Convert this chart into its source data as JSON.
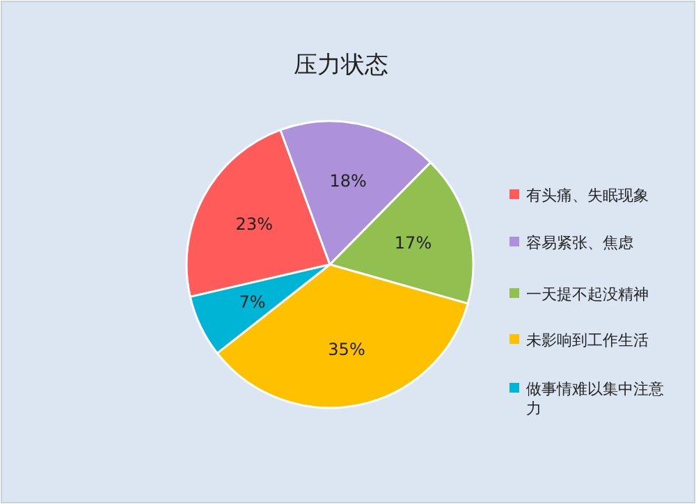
{
  "chart_data": {
    "type": "pie",
    "title": "压力状态",
    "categories": [
      "有头痛、失眠现象",
      "容易紧张、焦虑",
      "一天提不起没精神",
      "未影响到工作生活",
      "做事情难以集中注意力"
    ],
    "values": [
      23,
      18,
      17,
      35,
      7
    ],
    "colors": [
      "#ff5b5b",
      "#ad92db",
      "#92c050",
      "#ffc000",
      "#00b4d6"
    ],
    "value_labels": [
      "23%",
      "18%",
      "17%",
      "35%",
      "7%"
    ],
    "legend": "right"
  }
}
